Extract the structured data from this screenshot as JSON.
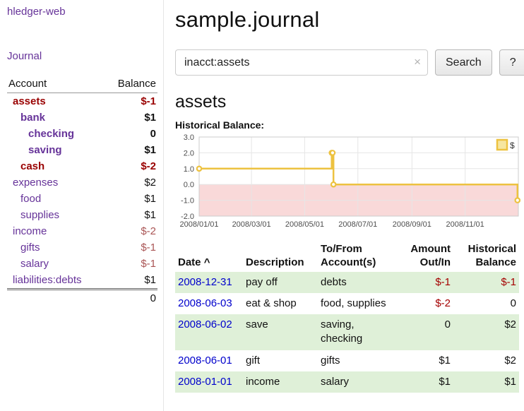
{
  "app": {
    "brand": "hledger-web",
    "nav_journal": "Journal"
  },
  "sidebar": {
    "table_headers": {
      "account": "Account",
      "balance": "Balance"
    },
    "accounts": [
      {
        "name": "assets",
        "balance": "$-1",
        "indent": 0,
        "bold": true
      },
      {
        "name": "bank",
        "balance": "$1",
        "indent": 1,
        "bold": true
      },
      {
        "name": "checking",
        "balance": "0",
        "indent": 2,
        "bold": true
      },
      {
        "name": "saving",
        "balance": "$1",
        "indent": 2,
        "bold": true
      },
      {
        "name": "cash",
        "balance": "$-2",
        "indent": 1,
        "bold": true
      },
      {
        "name": "expenses",
        "balance": "$2",
        "indent": 0,
        "bold": false
      },
      {
        "name": "food",
        "balance": "$1",
        "indent": 1,
        "bold": false
      },
      {
        "name": "supplies",
        "balance": "$1",
        "indent": 1,
        "bold": false
      },
      {
        "name": "income",
        "balance": "$-2",
        "indent": 0,
        "bold": false
      },
      {
        "name": "gifts",
        "balance": "$-1",
        "indent": 1,
        "bold": false
      },
      {
        "name": "salary",
        "balance": "$-1",
        "indent": 1,
        "bold": false
      },
      {
        "name": "liabilities:debts",
        "balance": "$1",
        "indent": 0,
        "bold": false
      }
    ],
    "total": "0"
  },
  "header": {
    "title": "sample.journal"
  },
  "search": {
    "value": "inacct:assets",
    "clear_icon": "×",
    "button": "Search",
    "help_button": "?"
  },
  "main": {
    "heading": "assets",
    "chart_label": "Historical Balance:"
  },
  "chart_data": {
    "type": "line",
    "step": true,
    "title": "Historical Balance",
    "x_start": "2008-01-01",
    "x_total_days": 366,
    "series": [
      {
        "name": "$",
        "color": "#edc240",
        "points": [
          [
            "2008-01-01",
            1
          ],
          [
            "2008-06-01",
            2
          ],
          [
            "2008-06-02",
            2
          ],
          [
            "2008-06-03",
            0
          ],
          [
            "2008-12-31",
            -1
          ]
        ]
      }
    ],
    "ylim": [
      -2,
      3
    ],
    "yticks": [
      "3.0",
      "2.0",
      "1.0",
      "0.0",
      "-1.0",
      "-2.0"
    ],
    "xticks": [
      "2008/01/01",
      "2008/03/01",
      "2008/05/01",
      "2008/07/01",
      "2008/09/01",
      "2008/11/01"
    ],
    "negative_fill": "#f9d9d9",
    "grid_color": "#e6e6e6",
    "border_color": "#cccccc",
    "legend_label": "$",
    "legend_position": "top-right"
  },
  "register": {
    "headers": {
      "date": "Date",
      "sort_icon": "^",
      "description": "Description",
      "tofrom_line1": "To/From",
      "tofrom_line2": "Account(s)",
      "amount_line1": "Amount",
      "amount_line2": "Out/In",
      "hist_line1": "Historical",
      "hist_line2": "Balance"
    },
    "rows": [
      {
        "date": "2008-12-31",
        "description": "pay off",
        "accounts": "debts",
        "amount": "$-1",
        "balance": "$-1"
      },
      {
        "date": "2008-06-03",
        "description": "eat & shop",
        "accounts": "food, supplies",
        "amount": "$-2",
        "balance": "0"
      },
      {
        "date": "2008-06-02",
        "description": "save",
        "accounts": "saving,\nchecking",
        "amount": "0",
        "balance": "$2"
      },
      {
        "date": "2008-06-01",
        "description": "gift",
        "accounts": "gifts",
        "amount": "$1",
        "balance": "$2"
      },
      {
        "date": "2008-01-01",
        "description": "income",
        "accounts": "salary",
        "amount": "$1",
        "balance": "$1"
      }
    ]
  },
  "colors": {
    "accent_purple": "#663399",
    "negative_strong": "#990000",
    "negative_soft": "#aa5555",
    "negative_table": "#a40000",
    "row_stripe_green": "#dff0d8",
    "series_gold": "#edc240",
    "date_link_blue": "#0000cc"
  }
}
